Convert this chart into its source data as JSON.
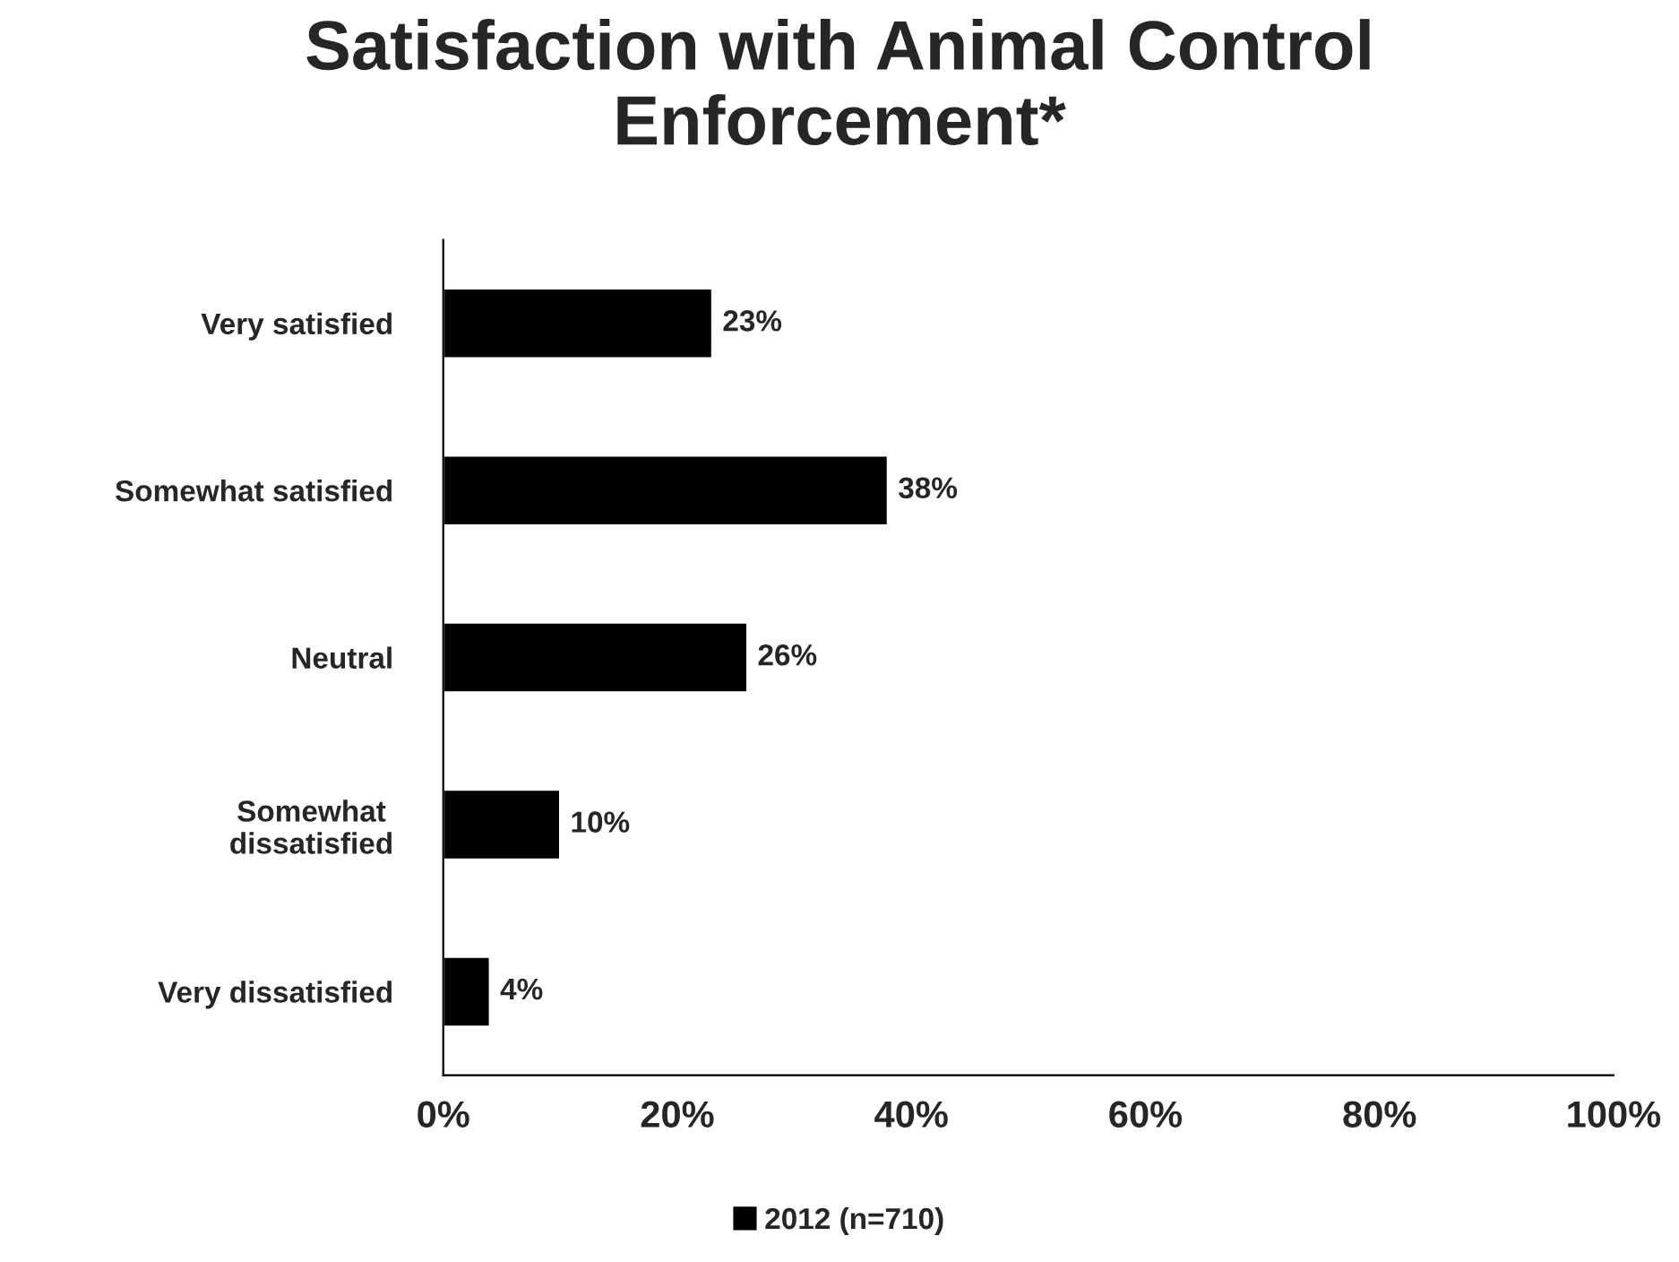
{
  "chart_data": {
    "type": "bar",
    "title": "Satisfaction with Animal Control\nEnforcement*",
    "orientation": "horizontal",
    "categories": [
      "Very satisfied",
      "Somewhat satisfied",
      "Neutral",
      "Somewhat\ndissatisfied",
      "Very dissatisfied"
    ],
    "series": [
      {
        "name": "2012 (n=710)",
        "color": "#000000",
        "values": [
          23,
          38,
          26,
          10,
          4
        ],
        "value_labels": [
          "23%",
          "38%",
          "26%",
          "10%",
          "4%"
        ]
      }
    ],
    "xlim": [
      0,
      100
    ],
    "xticks": [
      {
        "value": 0,
        "label": "0%"
      },
      {
        "value": 20,
        "label": "20%"
      },
      {
        "value": 40,
        "label": "40%"
      },
      {
        "value": 60,
        "label": "60%"
      },
      {
        "value": 80,
        "label": "80%"
      },
      {
        "value": 100,
        "label": "100%"
      }
    ],
    "grid": false,
    "legend": "bottom"
  }
}
